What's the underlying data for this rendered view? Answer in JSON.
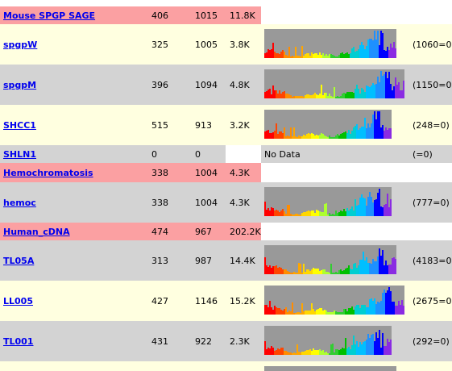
{
  "rows": [
    {
      "type": "group",
      "name": "Mouse SPGP SAGE",
      "a": "406",
      "b": "1015",
      "c": "11.8K",
      "histogram": null,
      "count": ""
    },
    {
      "type": "lib",
      "name": "spgpW",
      "a": "325",
      "b": "1005",
      "c": "3.8K",
      "histogram": "hist-spgpW",
      "count": "(1060=0)"
    },
    {
      "type": "lib",
      "name": "spgpM",
      "a": "396",
      "b": "1094",
      "c": "4.8K",
      "histogram": "hist-spgpM",
      "count": "(1150=0)"
    },
    {
      "type": "lib",
      "name": "SHCC1",
      "a": "515",
      "b": "913",
      "c": "3.2K",
      "histogram": "hist-SHCC1",
      "count": "(248=0)"
    },
    {
      "type": "lib",
      "name": "SHLN1",
      "a": "0",
      "b": "0",
      "c": "",
      "histogram": null,
      "no_data": "No Data",
      "count": "(=0)"
    },
    {
      "type": "group",
      "name": "Hemochromatosis",
      "a": "338",
      "b": "1004",
      "c": "4.3K",
      "histogram": null,
      "count": ""
    },
    {
      "type": "lib",
      "name": "hemoc",
      "a": "338",
      "b": "1004",
      "c": "4.3K",
      "histogram": "hist-hemoc",
      "count": "(777=0)"
    },
    {
      "type": "group",
      "name": "Human_cDNA",
      "a": "474",
      "b": "967",
      "c": "202.2K",
      "histogram": null,
      "count": ""
    },
    {
      "type": "lib",
      "name": "TL05A",
      "a": "313",
      "b": "987",
      "c": "14.4K",
      "histogram": "hist-TL05A",
      "count": "(4183=0)"
    },
    {
      "type": "lib",
      "name": "LL005",
      "a": "427",
      "b": "1146",
      "c": "15.2K",
      "histogram": "hist-LL005",
      "count": "(2675=0)"
    },
    {
      "type": "lib",
      "name": "TL001",
      "a": "431",
      "b": "922",
      "c": "2.3K",
      "histogram": "hist-TL001",
      "count": "(292=0)"
    }
  ],
  "colors": {
    "group_row": "#fba0a2",
    "lib_row_cream": "#ffffe0",
    "lib_row_gray": "#d3d3d3",
    "link": "#0000ee",
    "histogram_bg": "#999999"
  }
}
